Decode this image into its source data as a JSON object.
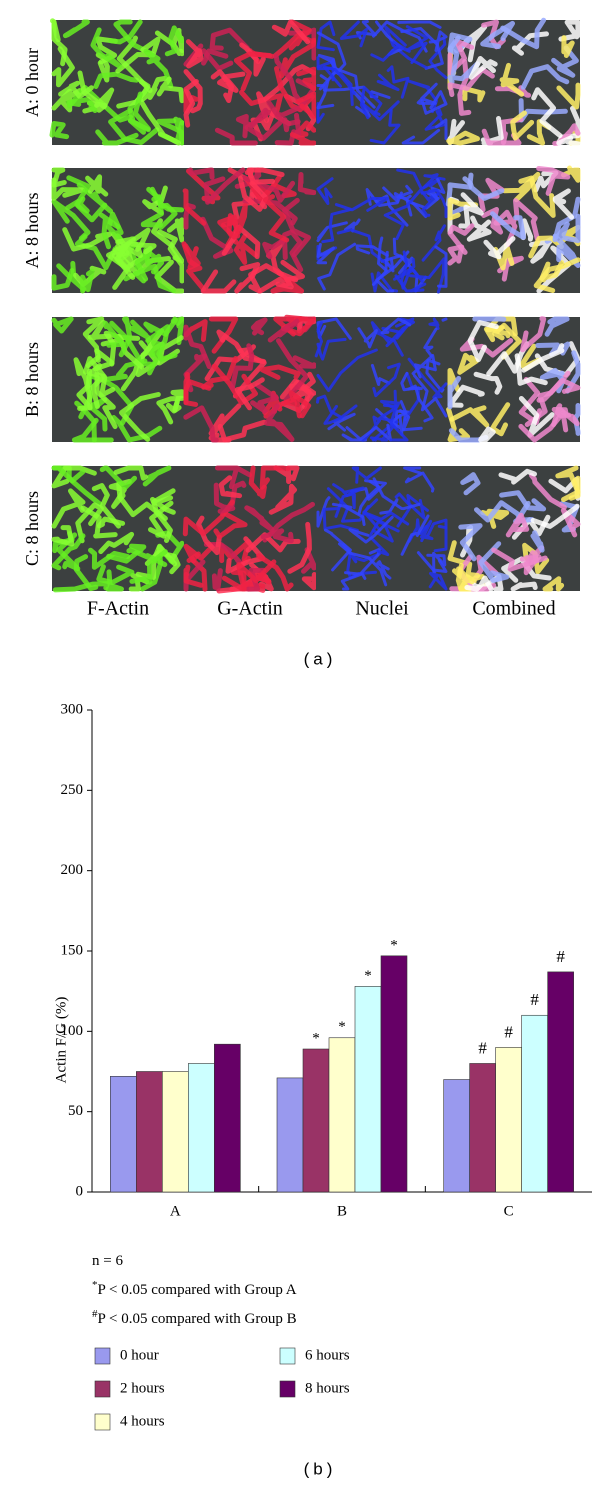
{
  "figure_a": {
    "row_labels": [
      "A: 0 hour",
      "A: 8 hours",
      "B: 8 hours",
      "C: 8 hours"
    ],
    "column_labels": [
      "F-Actin",
      "G-Actin",
      "Nuclei",
      "Combined"
    ],
    "caption": "(a)"
  },
  "chart_data": {
    "type": "bar",
    "ylabel": "Actin F/G (%)",
    "categories": [
      "A",
      "B",
      "C"
    ],
    "series": [
      {
        "name": "0 hour",
        "color": "#9999ee",
        "values": [
          72,
          71,
          70
        ]
      },
      {
        "name": "2 hours",
        "color": "#993366",
        "values": [
          75,
          89,
          80
        ],
        "annotations": [
          null,
          "*",
          "#"
        ]
      },
      {
        "name": "4 hours",
        "color": "#ffffcc",
        "values": [
          75,
          96,
          90
        ],
        "annotations": [
          null,
          "*",
          "#"
        ]
      },
      {
        "name": "6 hours",
        "color": "#ccffff",
        "values": [
          80,
          128,
          110
        ],
        "annotations": [
          null,
          "*",
          "#"
        ]
      },
      {
        "name": "8 hours",
        "color": "#660066",
        "values": [
          92,
          147,
          137
        ],
        "annotations": [
          null,
          "*",
          "#"
        ]
      }
    ],
    "ylim": [
      0,
      300
    ],
    "yticks": [
      0,
      50,
      100,
      150,
      200,
      250,
      300
    ],
    "notes": [
      {
        "text": "n = 6"
      },
      {
        "mark": "*",
        "text": "P < 0.05 compared with Group A"
      },
      {
        "mark": "#",
        "text": "P < 0.05 compared with Group B"
      }
    ],
    "caption": "(b)"
  }
}
